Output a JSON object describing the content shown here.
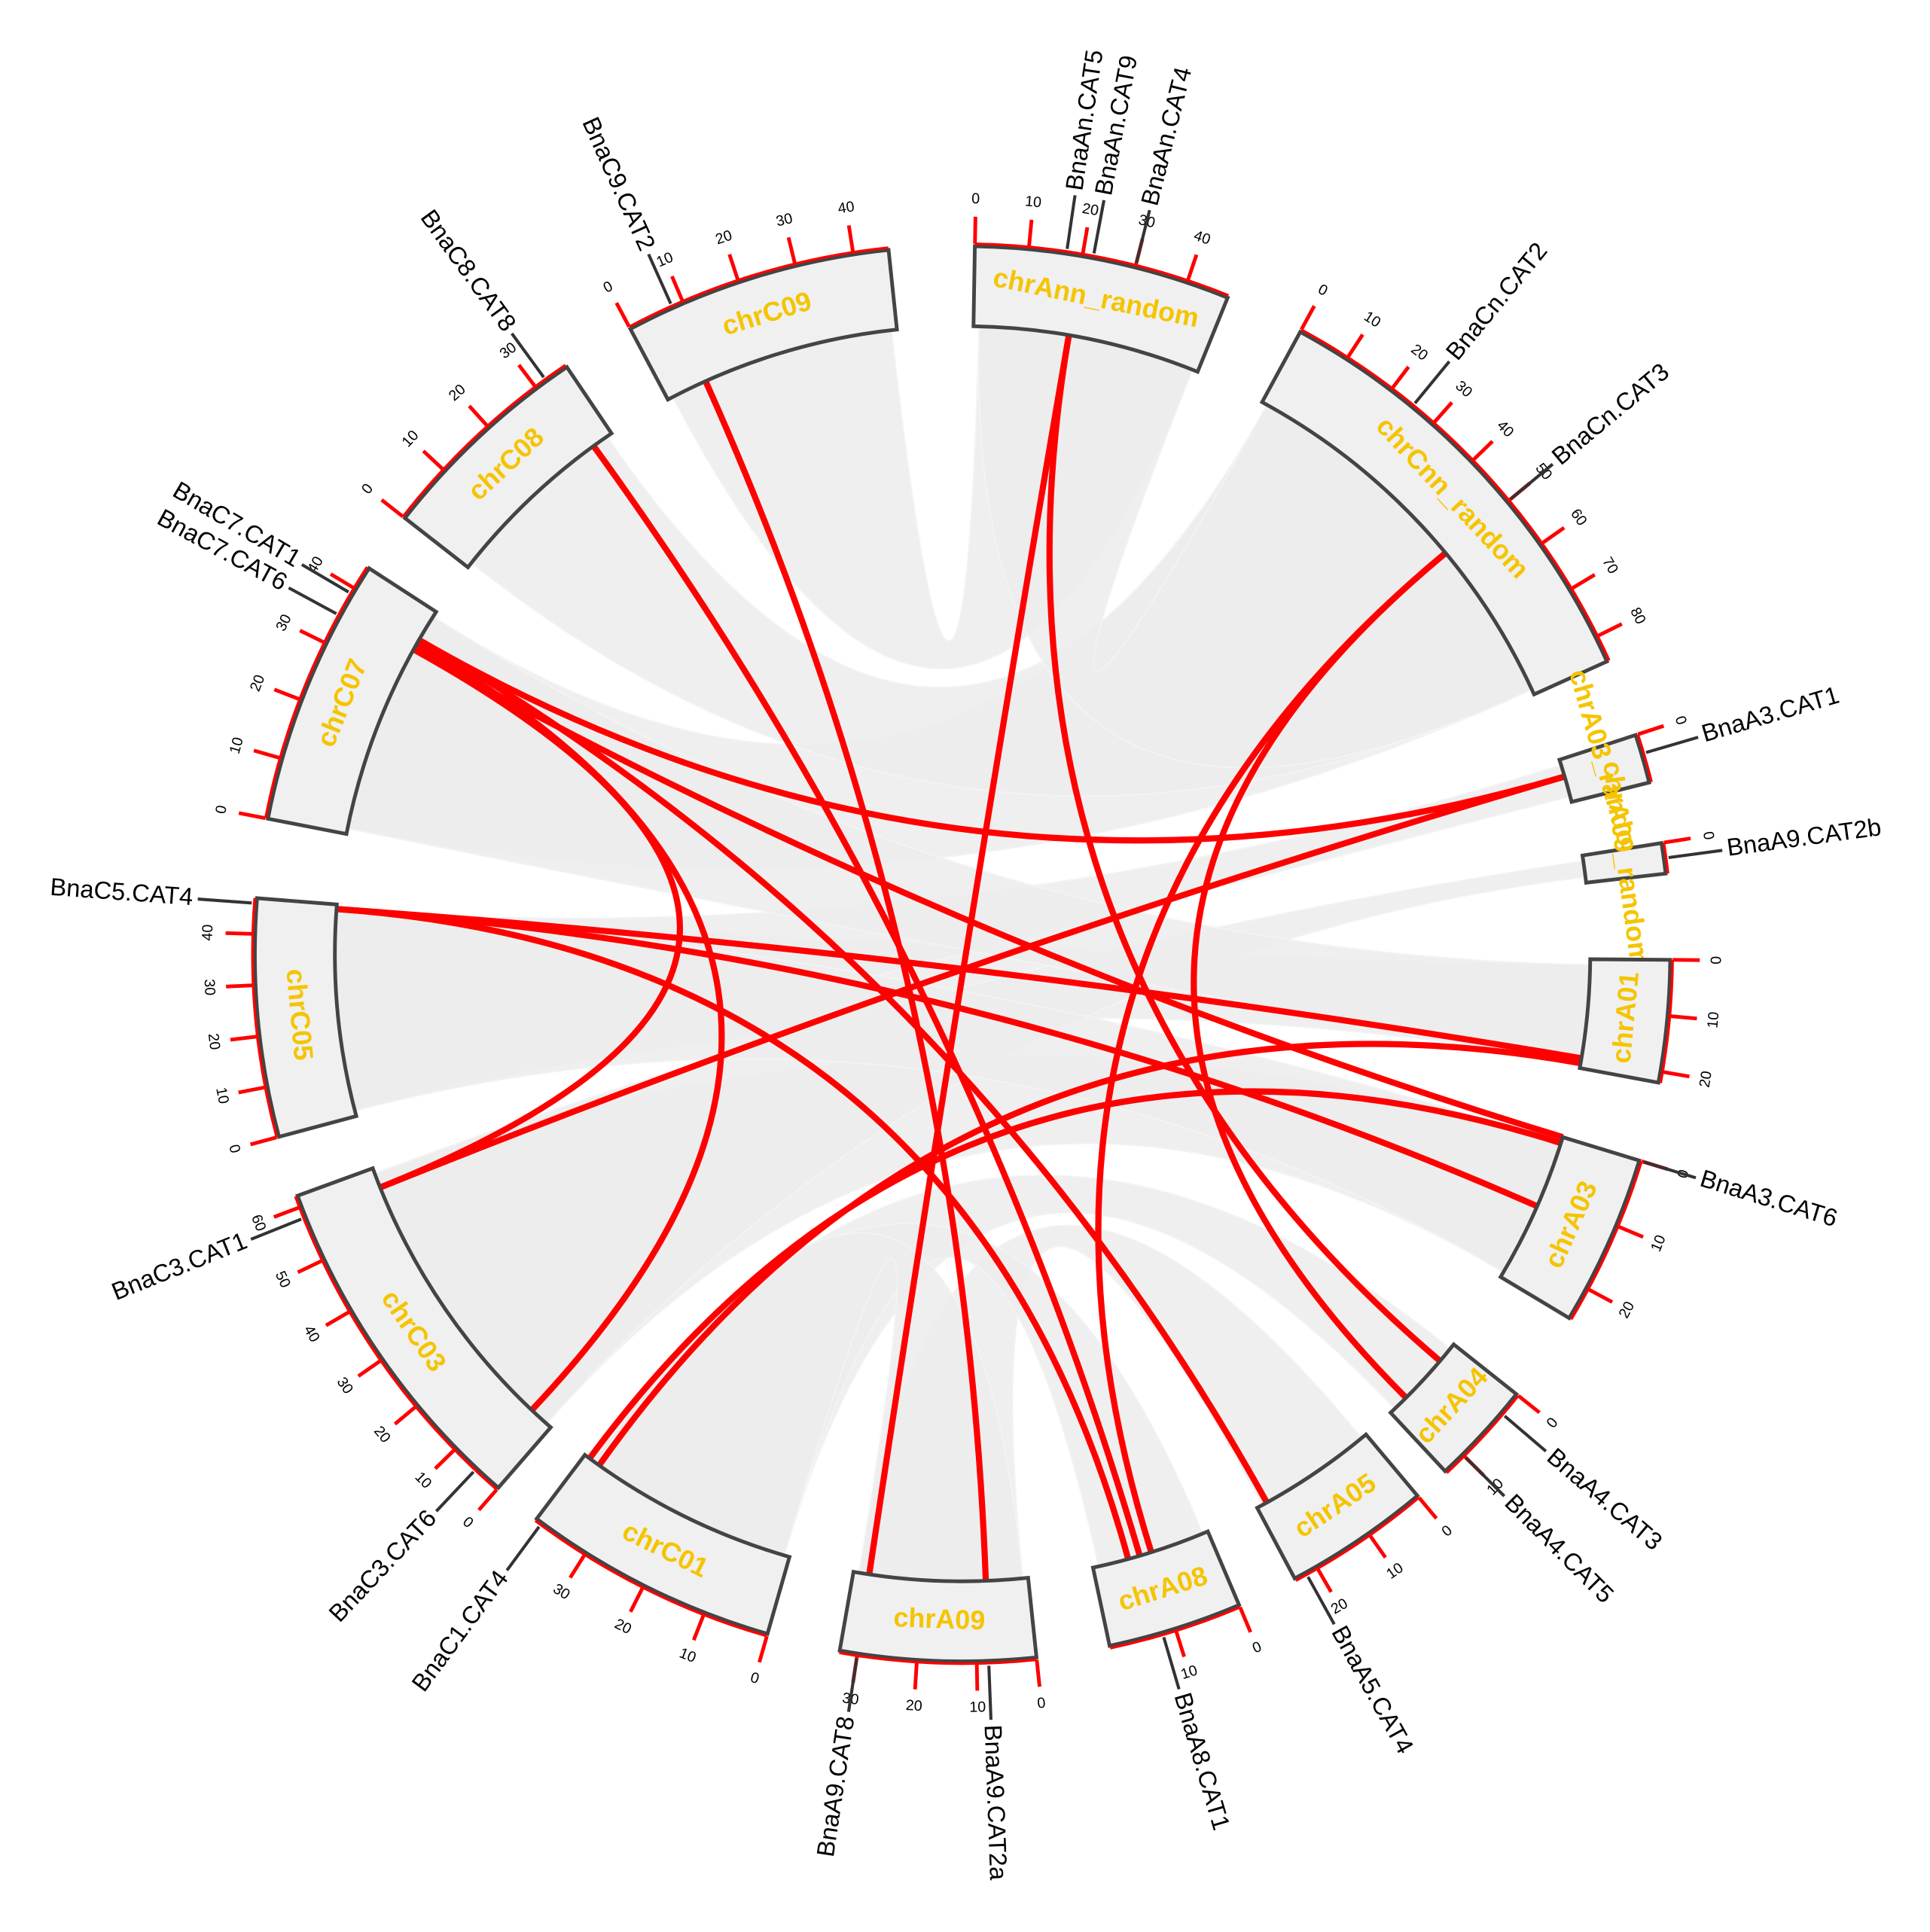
{
  "chromosomes": [
    {
      "label": "chrAnn_random",
      "ticks": [
        0,
        10,
        20,
        30,
        40
      ]
    },
    {
      "label": "chrCnn_random",
      "ticks": [
        0,
        10,
        20,
        30,
        40,
        50,
        60,
        70,
        80
      ]
    },
    {
      "label": "chrA03_random",
      "ticks": [
        0
      ]
    },
    {
      "label": "chrA09_random",
      "ticks": [
        0
      ]
    },
    {
      "label": "chrA01",
      "ticks": [
        0,
        10,
        20
      ]
    },
    {
      "label": "chrA03",
      "ticks": [
        0,
        10,
        20
      ]
    },
    {
      "label": "chrA04",
      "ticks": [
        0,
        10
      ]
    },
    {
      "label": "chrA05",
      "ticks": [
        0,
        10,
        20
      ]
    },
    {
      "label": "chrA08",
      "ticks": [
        0,
        10
      ]
    },
    {
      "label": "chrA09",
      "ticks": [
        0,
        10,
        20,
        30
      ]
    },
    {
      "label": "chrC01",
      "ticks": [
        0,
        10,
        20,
        30
      ]
    },
    {
      "label": "chrC03",
      "ticks": [
        0,
        10,
        20,
        30,
        40,
        50,
        60
      ]
    },
    {
      "label": "chrC05",
      "ticks": [
        0,
        10,
        20,
        30,
        40
      ]
    },
    {
      "label": "chrC07",
      "ticks": [
        0,
        10,
        20,
        30,
        40
      ]
    },
    {
      "label": "chrC08",
      "ticks": [
        0,
        10,
        20,
        30
      ]
    },
    {
      "label": "chrC09",
      "ticks": [
        0,
        10,
        20,
        30,
        40
      ]
    }
  ],
  "genes": [
    "BnaAn.CAT5",
    "BnaAn.CAT9",
    "BnaAn.CAT4",
    "BnaCn.CAT2",
    "BnaCn.CAT3",
    "BnaA3.CAT1",
    "BnaA9.CAT2b",
    "BnaA3.CAT6",
    "BnaA4.CAT3",
    "BnaA4.CAT5",
    "BnaA5.CAT4",
    "BnaA8.CAT1",
    "BnaA9.CAT2a",
    "BnaA9.CAT8",
    "BnaC1.CAT4",
    "BnaC3.CAT6",
    "BnaC3.CAT1",
    "BnaC5.CAT4",
    "BnaC7.CAT6",
    "BnaC7.CAT1",
    "BnaC8.CAT8",
    "BnaC9.CAT2"
  ]
}
